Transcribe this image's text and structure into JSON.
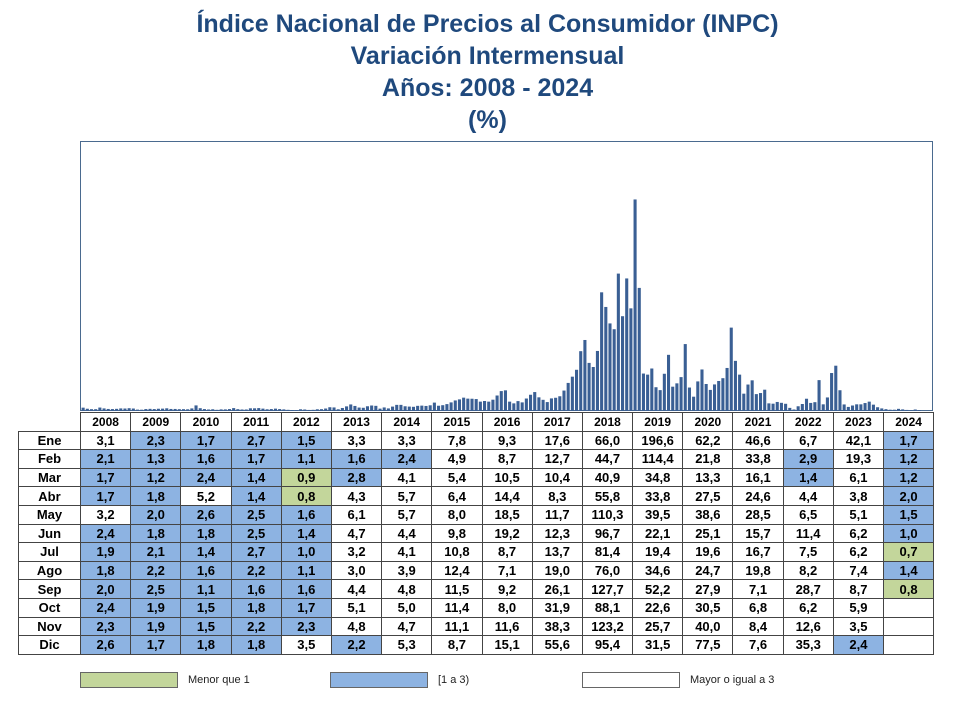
{
  "title": {
    "line1": "Índice Nacional de Precios al Consumidor (INPC)",
    "line2": "Variación Intermensual",
    "line3": "Años: 2008 - 2024",
    "line4": "(%)"
  },
  "colors": {
    "title": "#1f497d",
    "bar": "#3a5f94",
    "green": "#c3d69b",
    "blue": "#8db3e2",
    "white": "#ffffff"
  },
  "legend": {
    "less_than_1": "Menor que 1",
    "one_to_three": "[1 a 3)",
    "three_or_more": "Mayor o igual a 3"
  },
  "chart_data": {
    "type": "bar",
    "title": "Índice Nacional de Precios al Consumidor (INPC) Variación Intermensual Años: 2008 - 2024 (%)",
    "ylim": [
      0,
      250
    ],
    "grid": false,
    "table": {
      "years": [
        "2008",
        "2009",
        "2010",
        "2011",
        "2012",
        "2013",
        "2014",
        "2015",
        "2016",
        "2017",
        "2018",
        "2019",
        "2020",
        "2021",
        "2022",
        "2023",
        "2024"
      ],
      "rows": [
        {
          "month": "Ene",
          "values": [
            "3,1",
            "2,3",
            "1,7",
            "2,7",
            "1,5",
            "3,3",
            "3,3",
            "7,8",
            "9,3",
            "17,6",
            "66,0",
            "196,6",
            "62,2",
            "46,6",
            "6,7",
            "42,1",
            "1,7"
          ]
        },
        {
          "month": "Feb",
          "values": [
            "2,1",
            "1,3",
            "1,6",
            "1,7",
            "1,1",
            "1,6",
            "2,4",
            "4,9",
            "8,7",
            "12,7",
            "44,7",
            "114,4",
            "21,8",
            "33,8",
            "2,9",
            "19,3",
            "1,2"
          ]
        },
        {
          "month": "Mar",
          "values": [
            "1,7",
            "1,2",
            "2,4",
            "1,4",
            "0,9",
            "2,8",
            "4,1",
            "5,4",
            "10,5",
            "10,4",
            "40,9",
            "34,8",
            "13,3",
            "16,1",
            "1,4",
            "6,1",
            "1,2"
          ]
        },
        {
          "month": "Abr",
          "values": [
            "1,7",
            "1,8",
            "5,2",
            "1,4",
            "0,8",
            "4,3",
            "5,7",
            "6,4",
            "14,4",
            "8,3",
            "55,8",
            "33,8",
            "27,5",
            "24,6",
            "4,4",
            "3,8",
            "2,0"
          ]
        },
        {
          "month": "May",
          "values": [
            "3,2",
            "2,0",
            "2,6",
            "2,5",
            "1,6",
            "6,1",
            "5,7",
            "8,0",
            "18,5",
            "11,7",
            "110,3",
            "39,5",
            "38,6",
            "28,5",
            "6,5",
            "5,1",
            "1,5"
          ]
        },
        {
          "month": "Jun",
          "values": [
            "2,4",
            "1,8",
            "1,8",
            "2,5",
            "1,4",
            "4,7",
            "4,4",
            "9,8",
            "19,2",
            "12,3",
            "96,7",
            "22,1",
            "25,1",
            "15,7",
            "11,4",
            "6,2",
            "1,0"
          ]
        },
        {
          "month": "Jul",
          "values": [
            "1,9",
            "2,1",
            "1,4",
            "2,7",
            "1,0",
            "3,2",
            "4,1",
            "10,8",
            "8,7",
            "13,7",
            "81,4",
            "19,4",
            "19,6",
            "16,7",
            "7,5",
            "6,2",
            "0,7"
          ]
        },
        {
          "month": "Ago",
          "values": [
            "1,8",
            "2,2",
            "1,6",
            "2,2",
            "1,1",
            "3,0",
            "3,9",
            "12,4",
            "7,1",
            "19,0",
            "76,0",
            "34,6",
            "24,7",
            "19,8",
            "8,2",
            "7,4",
            "1,4"
          ]
        },
        {
          "month": "Sep",
          "values": [
            "2,0",
            "2,5",
            "1,1",
            "1,6",
            "1,6",
            "4,4",
            "4,8",
            "11,5",
            "9,2",
            "26,1",
            "127,7",
            "52,2",
            "27,9",
            "7,1",
            "28,7",
            "8,7",
            "0,8"
          ]
        },
        {
          "month": "Oct",
          "values": [
            "2,4",
            "1,9",
            "1,5",
            "1,8",
            "1,7",
            "5,1",
            "5,0",
            "11,4",
            "8,0",
            "31,9",
            "88,1",
            "22,6",
            "30,5",
            "6,8",
            "6,2",
            "5,9",
            ""
          ]
        },
        {
          "month": "Nov",
          "values": [
            "2,3",
            "1,9",
            "1,5",
            "2,2",
            "2,3",
            "4,8",
            "4,7",
            "11,1",
            "11,6",
            "38,3",
            "123,2",
            "25,7",
            "40,0",
            "8,4",
            "12,6",
            "3,5",
            ""
          ]
        },
        {
          "month": "Dic",
          "values": [
            "2,6",
            "1,7",
            "1,8",
            "1,8",
            "3,5",
            "2,2",
            "5,3",
            "8,7",
            "15,1",
            "55,6",
            "95,4",
            "31,5",
            "77,5",
            "7,6",
            "35,3",
            "2,4",
            ""
          ]
        }
      ]
    }
  }
}
